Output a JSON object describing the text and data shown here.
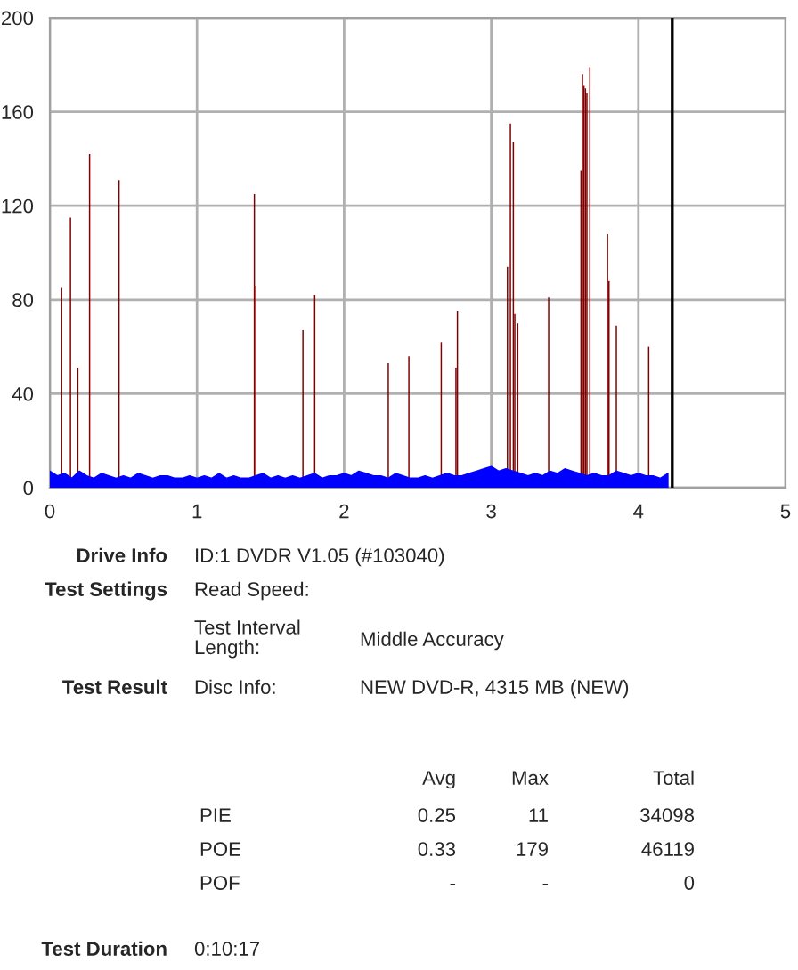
{
  "chart_data": {
    "type": "bar",
    "xlim": [
      0,
      5
    ],
    "xticks": [
      0,
      1,
      2,
      3,
      4,
      5
    ],
    "ylim": [
      0,
      200
    ],
    "yticks": [
      0,
      40,
      80,
      120,
      160,
      200
    ],
    "grid": true,
    "series": [
      {
        "color": "#800000",
        "x": [
          0.08,
          0.14,
          0.19,
          0.27,
          0.47,
          1.39,
          1.4,
          1.72,
          1.8,
          2.3,
          2.44,
          2.66,
          2.76,
          2.77,
          3.11,
          3.13,
          3.15,
          3.16,
          3.18,
          3.39,
          3.61,
          3.62,
          3.63,
          3.64,
          3.65,
          3.67,
          3.79,
          3.8,
          3.85,
          4.07
        ],
        "values": [
          85,
          115,
          51,
          142,
          131,
          125,
          86,
          67,
          82,
          53,
          56,
          62,
          51,
          75,
          94,
          155,
          147,
          74,
          70,
          81,
          135,
          176,
          171,
          170,
          168,
          179,
          108,
          88,
          69,
          60
        ]
      },
      {
        "type": "area",
        "color": "#0000ff",
        "x": [
          0,
          0.05,
          0.1,
          0.15,
          0.2,
          0.25,
          0.3,
          0.35,
          0.4,
          0.45,
          0.5,
          0.55,
          0.6,
          0.65,
          0.7,
          0.75,
          0.8,
          0.85,
          0.9,
          0.95,
          1.0,
          1.05,
          1.1,
          1.15,
          1.2,
          1.25,
          1.3,
          1.35,
          1.4,
          1.45,
          1.5,
          1.55,
          1.6,
          1.65,
          1.7,
          1.75,
          1.8,
          1.85,
          1.9,
          1.95,
          2.0,
          2.05,
          2.1,
          2.15,
          2.2,
          2.25,
          2.3,
          2.35,
          2.4,
          2.45,
          2.5,
          2.55,
          2.6,
          2.65,
          2.7,
          2.75,
          2.8,
          2.85,
          2.9,
          2.95,
          3.0,
          3.05,
          3.1,
          3.15,
          3.2,
          3.25,
          3.3,
          3.35,
          3.4,
          3.45,
          3.5,
          3.55,
          3.6,
          3.65,
          3.7,
          3.75,
          3.8,
          3.85,
          3.9,
          3.95,
          4.0,
          4.05,
          4.1,
          4.15,
          4.2
        ],
        "values": [
          7,
          5,
          6,
          4,
          7,
          5,
          4,
          6,
          5,
          4,
          5,
          4,
          6,
          5,
          4,
          5,
          5,
          4,
          4,
          5,
          4,
          5,
          4,
          6,
          4,
          5,
          4,
          4,
          5,
          6,
          4,
          5,
          4,
          5,
          4,
          5,
          6,
          4,
          5,
          5,
          6,
          5,
          7,
          6,
          5,
          5,
          4,
          6,
          5,
          4,
          4,
          5,
          4,
          5,
          6,
          5,
          5,
          6,
          7,
          8,
          9,
          7,
          8,
          7,
          6,
          5,
          6,
          5,
          7,
          6,
          8,
          7,
          6,
          5,
          6,
          5,
          5,
          7,
          6,
          5,
          6,
          5,
          5,
          4,
          6
        ]
      }
    ],
    "ref_lines": [
      {
        "axis": "x",
        "value": 4.23,
        "color": "#000000"
      }
    ],
    "annotations": [
      "Drive Info",
      "ID:1 DVDR V1.05 (#103040)",
      "Test Settings",
      "Read Speed:",
      "Test Interval\nLength:",
      "Middle Accuracy",
      "Test Result",
      "Disc Info:",
      "NEW DVD-R, 4315 MB (NEW)",
      "Avg",
      "Max",
      "Total",
      "PIE",
      "0.25",
      "11",
      "34098",
      "POE",
      "0.33",
      "179",
      "46119",
      "POF",
      "-",
      "-",
      "0",
      "Test Duration",
      "0:10:17"
    ]
  }
}
